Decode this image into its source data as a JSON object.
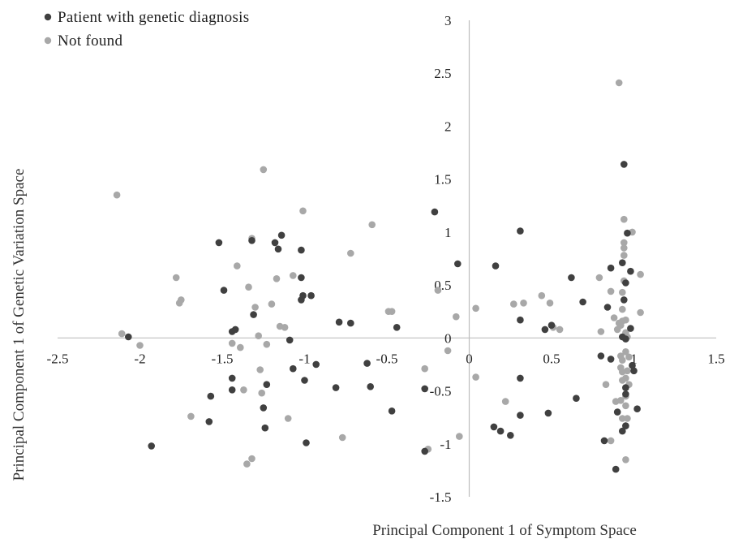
{
  "chart_data": {
    "type": "scatter",
    "xlabel": "Principal Component 1 of Symptom Space",
    "ylabel": "Principal Component 1 of  Genetic Variation Space",
    "xlim": [
      -2.5,
      1.5
    ],
    "ylim": [
      -1.5,
      3
    ],
    "x_ticks": [
      "-2.5",
      "-2",
      "-1.5",
      "-1",
      "-0.5",
      "0",
      "0.5",
      "1",
      "1.5"
    ],
    "y_ticks": [
      "-1.5",
      "-1",
      "-0.5",
      "0",
      "0.5",
      "1",
      "1.5",
      "2",
      "2.5",
      "3"
    ],
    "grid": false,
    "legend_position": "top-left",
    "series": [
      {
        "name": "Patient with genetic diagnosis",
        "color": "#404040",
        "points": [
          [
            -2.07,
            0.01
          ],
          [
            -1.93,
            -1.02
          ],
          [
            -1.52,
            0.9
          ],
          [
            -1.49,
            0.45
          ],
          [
            -1.57,
            -0.55
          ],
          [
            -1.58,
            -0.79
          ],
          [
            -1.44,
            0.06
          ],
          [
            -1.42,
            0.08
          ],
          [
            -1.44,
            -0.38
          ],
          [
            -1.44,
            -0.49
          ],
          [
            -1.32,
            0.92
          ],
          [
            -1.31,
            0.22
          ],
          [
            -1.25,
            -0.66
          ],
          [
            -1.24,
            -0.85
          ],
          [
            -1.23,
            -0.44
          ],
          [
            -1.18,
            0.9
          ],
          [
            -1.16,
            0.84
          ],
          [
            -1.14,
            0.97
          ],
          [
            -1.09,
            -0.02
          ],
          [
            -1.07,
            -0.29
          ],
          [
            -1.02,
            0.83
          ],
          [
            -1.02,
            0.57
          ],
          [
            -1.02,
            0.36
          ],
          [
            -1.01,
            0.4
          ],
          [
            -1.0,
            -0.4
          ],
          [
            -0.99,
            -0.99
          ],
          [
            -0.96,
            0.4
          ],
          [
            -0.93,
            -0.25
          ],
          [
            -0.81,
            -0.47
          ],
          [
            -0.79,
            0.15
          ],
          [
            -0.72,
            0.14
          ],
          [
            -0.62,
            -0.24
          ],
          [
            -0.6,
            -0.46
          ],
          [
            -0.47,
            -0.69
          ],
          [
            -0.44,
            0.1
          ],
          [
            -0.27,
            -1.07
          ],
          [
            -0.21,
            1.19
          ],
          [
            -0.27,
            -0.48
          ],
          [
            -0.07,
            0.7
          ],
          [
            0.16,
            0.68
          ],
          [
            0.15,
            -0.84
          ],
          [
            0.19,
            -0.88
          ],
          [
            0.25,
            -0.92
          ],
          [
            0.31,
            1.01
          ],
          [
            0.31,
            0.17
          ],
          [
            0.31,
            -0.38
          ],
          [
            0.31,
            -0.73
          ],
          [
            0.46,
            0.08
          ],
          [
            0.48,
            -0.71
          ],
          [
            0.5,
            0.12
          ],
          [
            0.62,
            0.57
          ],
          [
            0.65,
            -0.57
          ],
          [
            0.69,
            0.34
          ],
          [
            0.8,
            -0.17
          ],
          [
            0.82,
            -0.97
          ],
          [
            0.84,
            0.29
          ],
          [
            0.86,
            0.66
          ],
          [
            0.86,
            -0.2
          ],
          [
            0.89,
            -1.24
          ],
          [
            0.9,
            -0.7
          ],
          [
            0.93,
            0.71
          ],
          [
            0.93,
            0.01
          ],
          [
            0.94,
            1.64
          ],
          [
            0.94,
            0.36
          ],
          [
            0.95,
            0.52
          ],
          [
            0.95,
            -0.01
          ],
          [
            0.96,
            0.99
          ],
          [
            0.95,
            -0.47
          ],
          [
            0.95,
            -0.53
          ],
          [
            0.95,
            -0.83
          ],
          [
            0.93,
            -0.88
          ],
          [
            0.98,
            0.63
          ],
          [
            0.98,
            0.09
          ],
          [
            0.99,
            -0.26
          ],
          [
            1.0,
            -0.31
          ],
          [
            1.02,
            -0.67
          ]
        ]
      },
      {
        "name": "Not found",
        "color": "#a8a8a8",
        "points": [
          [
            -2.14,
            1.35
          ],
          [
            -2.11,
            0.04
          ],
          [
            -2.0,
            -0.07
          ],
          [
            -1.78,
            0.57
          ],
          [
            -1.76,
            0.33
          ],
          [
            -1.75,
            0.36
          ],
          [
            -1.69,
            -0.74
          ],
          [
            -1.41,
            0.68
          ],
          [
            -1.39,
            -0.09
          ],
          [
            -1.44,
            -0.05
          ],
          [
            -1.37,
            -0.49
          ],
          [
            -1.35,
            -1.19
          ],
          [
            -1.32,
            0.94
          ],
          [
            -1.32,
            -1.14
          ],
          [
            -1.34,
            0.48
          ],
          [
            -1.3,
            0.29
          ],
          [
            -1.28,
            0.02
          ],
          [
            -1.27,
            -0.3
          ],
          [
            -1.26,
            -0.52
          ],
          [
            -1.25,
            1.59
          ],
          [
            -1.23,
            -0.06
          ],
          [
            -1.2,
            0.32
          ],
          [
            -1.17,
            0.56
          ],
          [
            -1.15,
            0.11
          ],
          [
            -1.12,
            0.1
          ],
          [
            -1.1,
            -0.76
          ],
          [
            -1.07,
            0.59
          ],
          [
            -1.01,
            1.2
          ],
          [
            -0.77,
            -0.94
          ],
          [
            -0.72,
            0.8
          ],
          [
            -0.59,
            1.07
          ],
          [
            -0.49,
            0.25
          ],
          [
            -0.47,
            0.25
          ],
          [
            -0.27,
            -0.29
          ],
          [
            -0.25,
            -1.05
          ],
          [
            -0.19,
            0.45
          ],
          [
            -0.13,
            -0.12
          ],
          [
            -0.08,
            0.2
          ],
          [
            -0.06,
            -0.93
          ],
          [
            0.04,
            0.28
          ],
          [
            0.04,
            -0.37
          ],
          [
            0.22,
            -0.6
          ],
          [
            0.27,
            0.32
          ],
          [
            0.33,
            0.33
          ],
          [
            0.44,
            0.4
          ],
          [
            0.49,
            0.33
          ],
          [
            0.51,
            0.1
          ],
          [
            0.55,
            0.08
          ],
          [
            0.79,
            0.57
          ],
          [
            0.8,
            0.06
          ],
          [
            0.83,
            -0.44
          ],
          [
            0.86,
            0.44
          ],
          [
            0.86,
            -0.97
          ],
          [
            0.88,
            0.19
          ],
          [
            0.89,
            -0.6
          ],
          [
            0.9,
            0.08
          ],
          [
            0.91,
            0.14
          ],
          [
            0.91,
            2.41
          ],
          [
            0.92,
            0.12
          ],
          [
            0.92,
            -0.17
          ],
          [
            0.92,
            -0.59
          ],
          [
            0.92,
            -0.28
          ],
          [
            0.93,
            0.43
          ],
          [
            0.93,
            0.27
          ],
          [
            0.93,
            0.16
          ],
          [
            0.93,
            -0.21
          ],
          [
            0.93,
            -0.32
          ],
          [
            0.93,
            -0.4
          ],
          [
            0.93,
            -0.76
          ],
          [
            0.94,
            1.12
          ],
          [
            0.94,
            0.9
          ],
          [
            0.94,
            0.85
          ],
          [
            0.94,
            0.78
          ],
          [
            0.94,
            0.54
          ],
          [
            0.95,
            0.17
          ],
          [
            0.95,
            0.05
          ],
          [
            0.95,
            -0.13
          ],
          [
            0.95,
            -0.38
          ],
          [
            0.95,
            -0.47
          ],
          [
            0.95,
            -0.55
          ],
          [
            0.95,
            -0.64
          ],
          [
            0.95,
            -0.83
          ],
          [
            0.95,
            -1.15
          ],
          [
            0.96,
            0.01
          ],
          [
            0.96,
            -0.31
          ],
          [
            0.96,
            -0.76
          ],
          [
            0.97,
            -0.18
          ],
          [
            0.97,
            -0.44
          ],
          [
            0.99,
            1.0
          ],
          [
            1.04,
            0.24
          ],
          [
            1.04,
            0.6
          ]
        ]
      }
    ]
  }
}
